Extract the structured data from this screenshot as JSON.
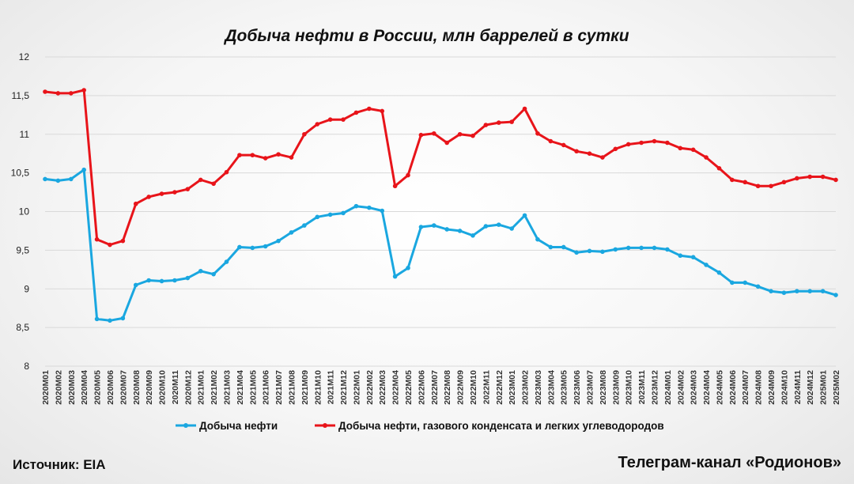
{
  "chart_data": {
    "type": "line",
    "title": "Добыча нефти в России, млн баррелей в сутки",
    "ylim": [
      8,
      12
    ],
    "yticks": [
      "8",
      "8,5",
      "9",
      "9,5",
      "10",
      "10,5",
      "11",
      "11,5",
      "12"
    ],
    "grid": true,
    "legend_position": "bottom",
    "categories": [
      "2020M01",
      "2020M02",
      "2020M03",
      "2020M04",
      "2020M05",
      "2020M06",
      "2020M07",
      "2020M08",
      "2020M09",
      "2020M10",
      "2020M11",
      "2020M12",
      "2021M01",
      "2021M02",
      "2021M03",
      "2021M04",
      "2021M05",
      "2021M06",
      "2021M07",
      "2021M08",
      "2021M09",
      "2021M10",
      "2021M11",
      "2021M12",
      "2022M01",
      "2022M02",
      "2022M03",
      "2022M04",
      "2022M05",
      "2022M06",
      "2022M07",
      "2022M08",
      "2022M09",
      "2022M10",
      "2022M11",
      "2022M12",
      "2023M01",
      "2023M02",
      "2023M03",
      "2023M04",
      "2023M05",
      "2023M06",
      "2023M07",
      "2023M08",
      "2023M09",
      "2023M10",
      "2023M11",
      "2023M12",
      "2024M01",
      "2024M02",
      "2024M03",
      "2024M04",
      "2024M05",
      "2024M06",
      "2024M07",
      "2024M08",
      "2024M09",
      "2024M10",
      "2024M11",
      "2024M12",
      "2025M01",
      "2025M02"
    ],
    "series": [
      {
        "name": "Добыча нефти",
        "color": "#1aa7e0",
        "values": [
          10.42,
          10.4,
          10.42,
          10.54,
          8.61,
          8.59,
          8.62,
          9.05,
          9.11,
          9.1,
          9.11,
          9.14,
          9.23,
          9.19,
          9.35,
          9.54,
          9.53,
          9.55,
          9.62,
          9.73,
          9.82,
          9.93,
          9.96,
          9.98,
          10.07,
          10.05,
          10.01,
          9.16,
          9.27,
          9.8,
          9.82,
          9.77,
          9.75,
          9.69,
          9.81,
          9.83,
          9.78,
          9.95,
          9.64,
          9.54,
          9.54,
          9.47,
          9.49,
          9.48,
          9.51,
          9.53,
          9.53,
          9.53,
          9.51,
          9.43,
          9.41,
          9.31,
          9.21,
          9.08,
          9.08,
          9.03,
          8.97,
          8.95,
          8.97,
          8.97,
          8.97,
          8.92
        ]
      },
      {
        "name": "Добыча нефти, газового конденсата и легких углеводородов",
        "color": "#e8141a",
        "values": [
          11.55,
          11.53,
          11.53,
          11.57,
          9.64,
          9.57,
          9.62,
          10.1,
          10.19,
          10.23,
          10.25,
          10.29,
          10.41,
          10.36,
          10.51,
          10.73,
          10.73,
          10.69,
          10.74,
          10.7,
          11.0,
          11.13,
          11.19,
          11.19,
          11.28,
          11.33,
          11.3,
          10.33,
          10.47,
          10.99,
          11.01,
          10.89,
          11.0,
          10.98,
          11.12,
          11.15,
          11.16,
          11.33,
          11.01,
          10.91,
          10.86,
          10.78,
          10.75,
          10.7,
          10.81,
          10.87,
          10.89,
          10.91,
          10.89,
          10.82,
          10.8,
          10.7,
          10.56,
          10.41,
          10.38,
          10.33,
          10.33,
          10.38,
          10.43,
          10.45,
          10.45,
          10.41
        ]
      }
    ]
  },
  "footer": {
    "source": "Источник: EIA",
    "channel": "Телеграм-канал «Родионов»"
  }
}
